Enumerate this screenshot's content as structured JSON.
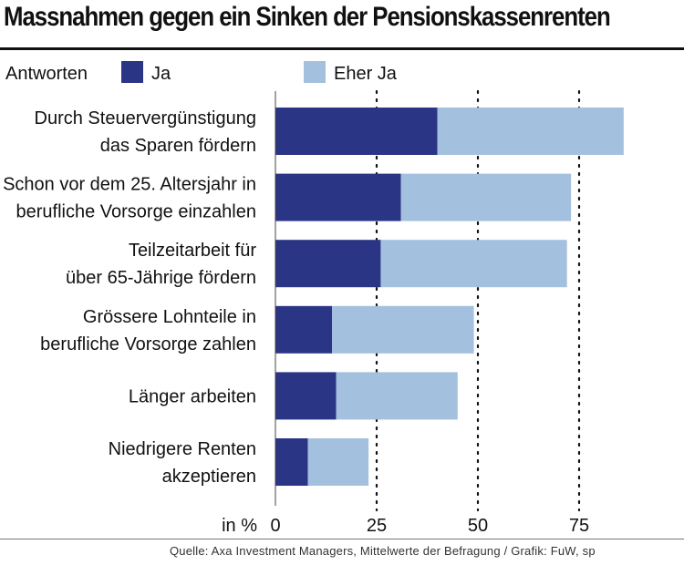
{
  "chart_data": {
    "type": "bar",
    "orientation": "horizontal",
    "stacked": true,
    "title": "Massnahmen gegen ein Sinken der Pensionskassenrenten",
    "legend_title": "Antworten",
    "series": [
      {
        "name": "Ja",
        "color": "#2b3585",
        "values": [
          40,
          31,
          26,
          14,
          15,
          8
        ]
      },
      {
        "name": "Eher Ja",
        "color": "#a3c0de",
        "values": [
          46,
          42,
          46,
          35,
          30,
          15
        ]
      }
    ],
    "categories": [
      [
        "Durch Steuervergünstigung",
        "das Sparen fördern"
      ],
      [
        "Schon vor dem 25. Altersjahr in",
        "berufliche Vorsorge einzahlen"
      ],
      [
        "Teilzeitarbeit für",
        "über 65-Jährige fördern"
      ],
      [
        "Grössere Lohnteile in",
        "berufliche Vorsorge zahlen"
      ],
      [
        "Länger arbeiten"
      ],
      [
        "Niedrigere Renten",
        "akzeptieren"
      ]
    ],
    "xlim": [
      0,
      100
    ],
    "xticks": [
      0,
      25,
      50,
      75
    ],
    "xtick_labels": [
      "0",
      "25",
      "50",
      "75"
    ],
    "xlabel": "in %",
    "source": "Quelle: Axa Investment Managers, Mittelwerte der Befragung / Grafik: FuW, sp"
  }
}
